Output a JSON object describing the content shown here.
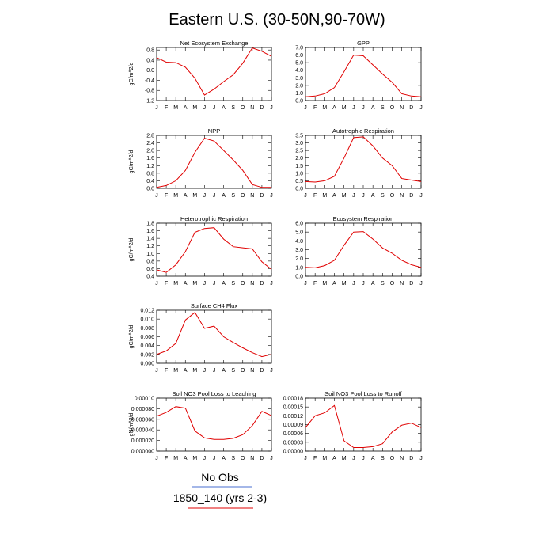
{
  "figure_title": "Eastern U.S. (30-50N,90-70W)",
  "legend": [
    {
      "label": "No Obs",
      "color": "#4a6fd0"
    },
    {
      "label": "1850_140 (yrs 2-3)",
      "color": "#e00000"
    }
  ],
  "chart_data": [
    {
      "type": "line",
      "title": "Net Ecosystem Exchange",
      "ylabel": "gC/m^2/d",
      "xlabel": "",
      "categories": [
        "J",
        "F",
        "M",
        "A",
        "M",
        "J",
        "J",
        "A",
        "S",
        "O",
        "N",
        "D",
        "J"
      ],
      "ylim": [
        -1.2,
        0.9
      ],
      "yticks": [
        "0.8",
        "0.4",
        "0.0",
        "-0.4",
        "-0.8",
        "-1.2"
      ],
      "series": [
        {
          "values": [
            0.5,
            0.32,
            0.3,
            0.12,
            -0.32,
            -0.98,
            -0.75,
            -0.45,
            -0.18,
            0.28,
            0.88,
            0.75,
            0.55
          ],
          "color": "#e00000"
        }
      ]
    },
    {
      "type": "line",
      "title": "GPP",
      "ylabel": "",
      "xlabel": "",
      "categories": [
        "J",
        "F",
        "M",
        "A",
        "M",
        "J",
        "J",
        "A",
        "S",
        "O",
        "N",
        "D",
        "J"
      ],
      "ylim": [
        0,
        7
      ],
      "yticks": [
        "7.0",
        "6.0",
        "5.0",
        "4.0",
        "3.0",
        "2.0",
        "1.0",
        "0.0"
      ],
      "series": [
        {
          "values": [
            0.5,
            0.6,
            0.9,
            1.7,
            3.8,
            6.0,
            5.9,
            4.7,
            3.5,
            2.4,
            0.9,
            0.6,
            0.5
          ],
          "color": "#e00000"
        }
      ]
    },
    {
      "type": "line",
      "title": "NPP",
      "ylabel": "gC/m^2/d",
      "xlabel": "",
      "categories": [
        "J",
        "F",
        "M",
        "A",
        "M",
        "J",
        "J",
        "A",
        "S",
        "O",
        "N",
        "D",
        "J"
      ],
      "ylim": [
        0,
        2.8
      ],
      "yticks": [
        "2.8",
        "2.4",
        "2.0",
        "1.6",
        "1.2",
        "0.8",
        "0.4",
        "0.0"
      ],
      "series": [
        {
          "values": [
            0.05,
            0.15,
            0.4,
            0.95,
            1.9,
            2.65,
            2.5,
            2.0,
            1.5,
            0.95,
            0.2,
            0.05,
            0.05
          ],
          "color": "#e00000"
        }
      ]
    },
    {
      "type": "line",
      "title": "Autotrophic Respiration",
      "ylabel": "",
      "xlabel": "",
      "categories": [
        "J",
        "F",
        "M",
        "A",
        "M",
        "J",
        "J",
        "A",
        "S",
        "O",
        "N",
        "D",
        "J"
      ],
      "ylim": [
        0,
        3.5
      ],
      "yticks": [
        "3.5",
        "3.0",
        "2.5",
        "2.0",
        "1.5",
        "1.0",
        "0.5",
        "0.0"
      ],
      "series": [
        {
          "values": [
            0.45,
            0.42,
            0.5,
            0.8,
            2.0,
            3.35,
            3.4,
            2.8,
            2.0,
            1.5,
            0.65,
            0.55,
            0.45
          ],
          "color": "#e00000"
        }
      ]
    },
    {
      "type": "line",
      "title": "Heterotrophic Respiration",
      "ylabel": "gC/m^2/d",
      "xlabel": "",
      "categories": [
        "J",
        "F",
        "M",
        "A",
        "M",
        "J",
        "J",
        "A",
        "S",
        "O",
        "N",
        "D",
        "J"
      ],
      "ylim": [
        0.4,
        1.8
      ],
      "yticks": [
        "1.8",
        "1.6",
        "1.4",
        "1.2",
        "1.0",
        "0.8",
        "0.6",
        "0.4"
      ],
      "series": [
        {
          "values": [
            0.57,
            0.5,
            0.7,
            1.05,
            1.56,
            1.66,
            1.68,
            1.38,
            1.18,
            1.15,
            1.12,
            0.78,
            0.58
          ],
          "color": "#e00000"
        }
      ]
    },
    {
      "type": "line",
      "title": "Ecosystem Respiration",
      "ylabel": "",
      "xlabel": "",
      "categories": [
        "J",
        "F",
        "M",
        "A",
        "M",
        "J",
        "J",
        "A",
        "S",
        "O",
        "N",
        "D",
        "J"
      ],
      "ylim": [
        0,
        6
      ],
      "yticks": [
        "6.0",
        "5.0",
        "4.0",
        "3.0",
        "2.0",
        "1.0",
        "0.0"
      ],
      "series": [
        {
          "values": [
            1.0,
            0.95,
            1.2,
            1.8,
            3.5,
            5.0,
            5.05,
            4.2,
            3.2,
            2.6,
            1.8,
            1.3,
            1.0
          ],
          "color": "#e00000"
        }
      ]
    },
    {
      "type": "line",
      "title": "Surface CH4 Flux",
      "ylabel": "gC/m^2/d",
      "xlabel": "",
      "categories": [
        "J",
        "F",
        "M",
        "A",
        "M",
        "J",
        "J",
        "A",
        "S",
        "O",
        "N",
        "D",
        "J"
      ],
      "ylim": [
        0,
        0.012
      ],
      "yticks": [
        "0.012",
        "0.010",
        "0.008",
        "0.006",
        "0.004",
        "0.002",
        "0.000"
      ],
      "series": [
        {
          "values": [
            0.002,
            0.0028,
            0.0045,
            0.0098,
            0.0115,
            0.0079,
            0.0084,
            0.006,
            0.0047,
            0.0035,
            0.0024,
            0.0015,
            0.002
          ],
          "color": "#e00000"
        }
      ]
    },
    {
      "type": "line",
      "title": "Soil NO3 Pool Loss to Leaching",
      "ylabel": "gN/m^2/d",
      "xlabel": "",
      "categories": [
        "J",
        "F",
        "M",
        "A",
        "M",
        "J",
        "J",
        "A",
        "S",
        "O",
        "N",
        "D",
        "J"
      ],
      "ylim": [
        0,
        0.0001
      ],
      "yticks": [
        "0.00010",
        "0.000080",
        "0.000060",
        "0.000040",
        "0.000020",
        "0.000000"
      ],
      "series": [
        {
          "values": [
            6.6e-05,
            7.3e-05,
            8.4e-05,
            8.1e-05,
            3.8e-05,
            2.5e-05,
            2.2e-05,
            2.2e-05,
            2.4e-05,
            3.1e-05,
            4.8e-05,
            7.5e-05,
            6.7e-05
          ],
          "color": "#e00000"
        }
      ]
    },
    {
      "type": "line",
      "title": "Soil NO3 Pool Loss to Runoff",
      "ylabel": "",
      "xlabel": "",
      "categories": [
        "J",
        "F",
        "M",
        "A",
        "M",
        "J",
        "J",
        "A",
        "S",
        "O",
        "N",
        "D",
        "J"
      ],
      "ylim": [
        0,
        0.00018
      ],
      "yticks": [
        "0.00018",
        "0.00015",
        "0.00012",
        "0.00009",
        "0.00006",
        "0.00003",
        "0.00000"
      ],
      "series": [
        {
          "values": [
            8e-05,
            0.00012,
            0.00013,
            0.000155,
            3.5e-05,
            1.2e-05,
            1.2e-05,
            1.5e-05,
            2.5e-05,
            6.5e-05,
            8.8e-05,
            9.5e-05,
            8e-05
          ],
          "color": "#e00000"
        }
      ]
    }
  ]
}
